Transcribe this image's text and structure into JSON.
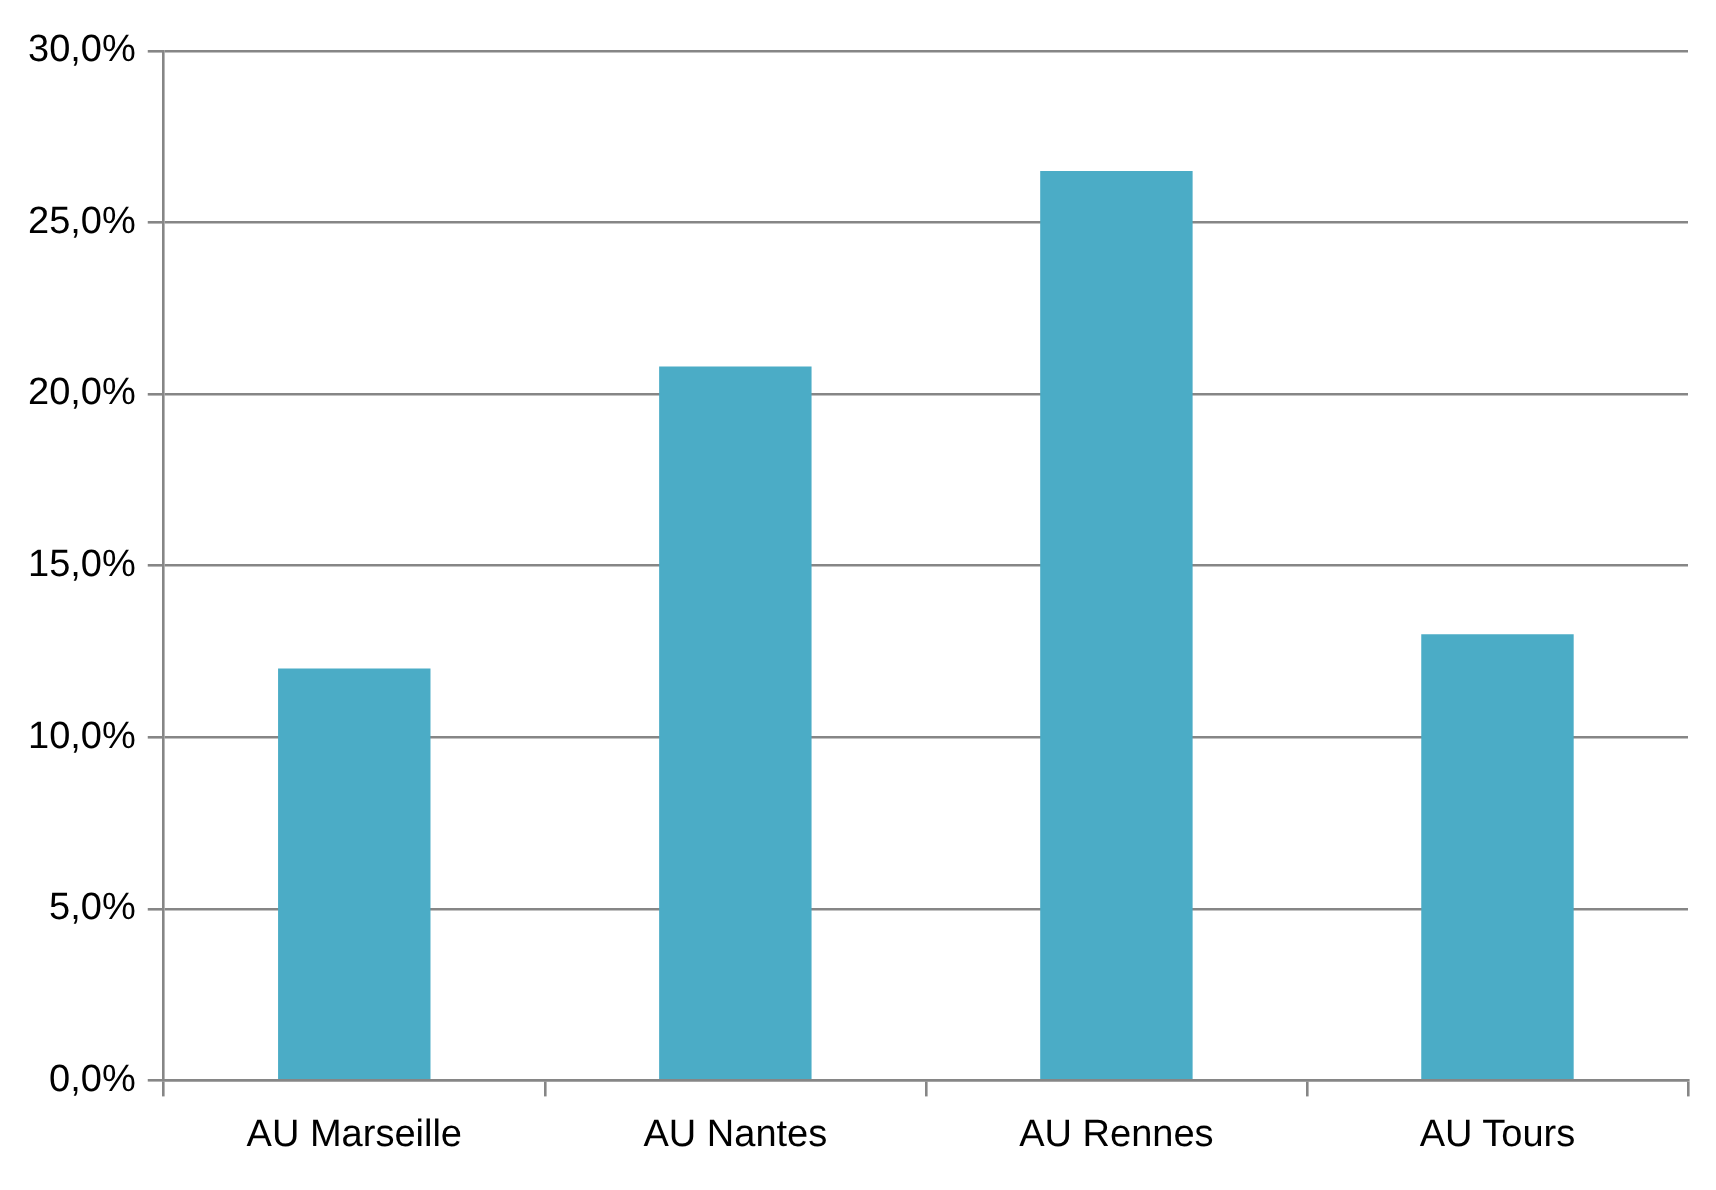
{
  "chart_data": {
    "type": "bar",
    "categories": [
      "AU Marseille",
      "AU Nantes",
      "AU Rennes",
      "AU Tours"
    ],
    "values": [
      12.0,
      20.8,
      26.5,
      13.0
    ],
    "color": "#4bacc6",
    "ylim": [
      0,
      30
    ],
    "yticks": [
      {
        "value": 0,
        "label": "0,0%"
      },
      {
        "value": 5,
        "label": "5,0%"
      },
      {
        "value": 10,
        "label": "10,0%"
      },
      {
        "value": 15,
        "label": "15,0%"
      },
      {
        "value": 20,
        "label": "20,0%"
      },
      {
        "value": 25,
        "label": "25,0%"
      },
      {
        "value": 30,
        "label": "30,0%"
      }
    ],
    "grid": "y",
    "legend": false
  }
}
